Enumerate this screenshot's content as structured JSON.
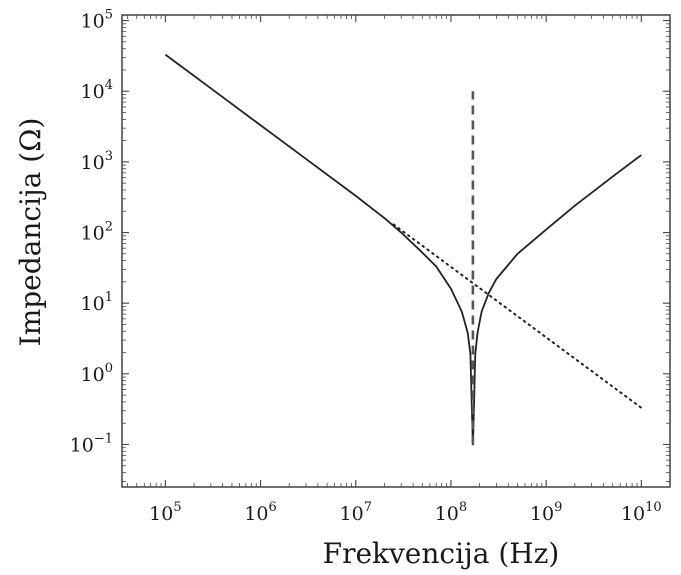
{
  "chart_data": {
    "type": "line",
    "title": "",
    "xlabel": "Frekvencija (Hz)",
    "ylabel": "Impedancija (Ω)",
    "xscale": "log",
    "yscale": "log",
    "xlim": [
      35000.0,
      20000000000.0
    ],
    "ylim": [
      0.025,
      120000.0
    ],
    "grid": false,
    "x_ticks": [
      {
        "value": 100000.0,
        "base": "10",
        "exp": "5"
      },
      {
        "value": 1000000.0,
        "base": "10",
        "exp": "6"
      },
      {
        "value": 10000000.0,
        "base": "10",
        "exp": "7"
      },
      {
        "value": 100000000.0,
        "base": "10",
        "exp": "8"
      },
      {
        "value": 1000000000.0,
        "base": "10",
        "exp": "9"
      },
      {
        "value": 10000000000.0,
        "base": "10",
        "exp": "10"
      }
    ],
    "y_ticks": [
      {
        "value": 100000.0,
        "base": "10",
        "exp": "5"
      },
      {
        "value": 10000.0,
        "base": "10",
        "exp": "4"
      },
      {
        "value": 1000.0,
        "base": "10",
        "exp": "3"
      },
      {
        "value": 100.0,
        "base": "10",
        "exp": "2"
      },
      {
        "value": 10.0,
        "base": "10",
        "exp": "1"
      },
      {
        "value": 1.0,
        "base": "10",
        "exp": "0"
      },
      {
        "value": 0.1,
        "base": "10",
        "exp": "−1"
      }
    ],
    "series": [
      {
        "style": "solid",
        "color": "#222222",
        "x": [
          100000.0,
          300000.0,
          1000000.0,
          3000000.0,
          10000000.0,
          20000000.0,
          30000000.0,
          50000000.0,
          70000000.0,
          100000000.0,
          130000000.0,
          150000000.0,
          160000000.0,
          165000000.0,
          170000000.0,
          175000000.0,
          180000000.0,
          190000000.0,
          210000000.0,
          250000000.0,
          300000000.0,
          500000000.0,
          1000000000.0,
          2000000000.0,
          5000000000.0,
          10000000000.0
        ],
        "y": [
          33000,
          11000,
          3300,
          1100,
          330,
          160,
          100,
          52,
          33,
          16,
          7.6,
          3.8,
          1.9,
          0.4,
          0.1,
          0.4,
          1.9,
          3.8,
          7.6,
          14,
          22,
          50,
          110,
          240,
          620,
          1250
        ]
      },
      {
        "style": "dotted",
        "color": "#222222",
        "x": [
          25000000.0,
          10000000000.0
        ],
        "y": [
          130,
          0.33
        ]
      },
      {
        "style": "dashed",
        "color": "#555555",
        "x": [
          170000000.0,
          170000000.0
        ],
        "y": [
          0.1,
          10000
        ]
      }
    ]
  }
}
